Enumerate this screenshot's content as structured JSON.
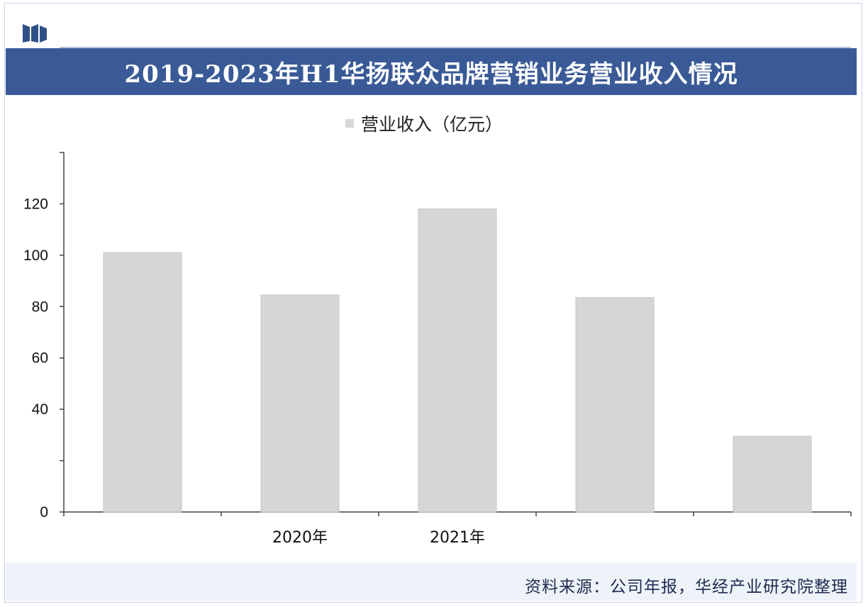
{
  "header": {
    "title": "2019-2023年H1华扬联众品牌营销业务营业收入情况",
    "logo_icon": "brand-logo-icon"
  },
  "legend": {
    "label": "营业收入（亿元）"
  },
  "footer": {
    "source": "资料来源：公司年报，华经产业研究院整理"
  },
  "colors": {
    "title_bar": "#3a5a97",
    "bar": "#d6d6d8",
    "axis": "#444444"
  },
  "chart_data": {
    "type": "bar",
    "categories": [
      "",
      "2020年",
      "2021年",
      "",
      ""
    ],
    "series": [
      {
        "name": "营业收入（亿元）",
        "values": [
          101,
          84.5,
          118,
          83.5,
          29.5
        ]
      }
    ],
    "ylim": [
      0,
      140
    ],
    "yticks": [
      0,
      20,
      40,
      60,
      80,
      100,
      120,
      140
    ],
    "ytick_labels": [
      "0",
      "",
      "40",
      "60",
      "80",
      "100",
      "120",
      ""
    ],
    "xlabel": "",
    "ylabel": "",
    "grid": false,
    "legend_position": "top-center"
  }
}
